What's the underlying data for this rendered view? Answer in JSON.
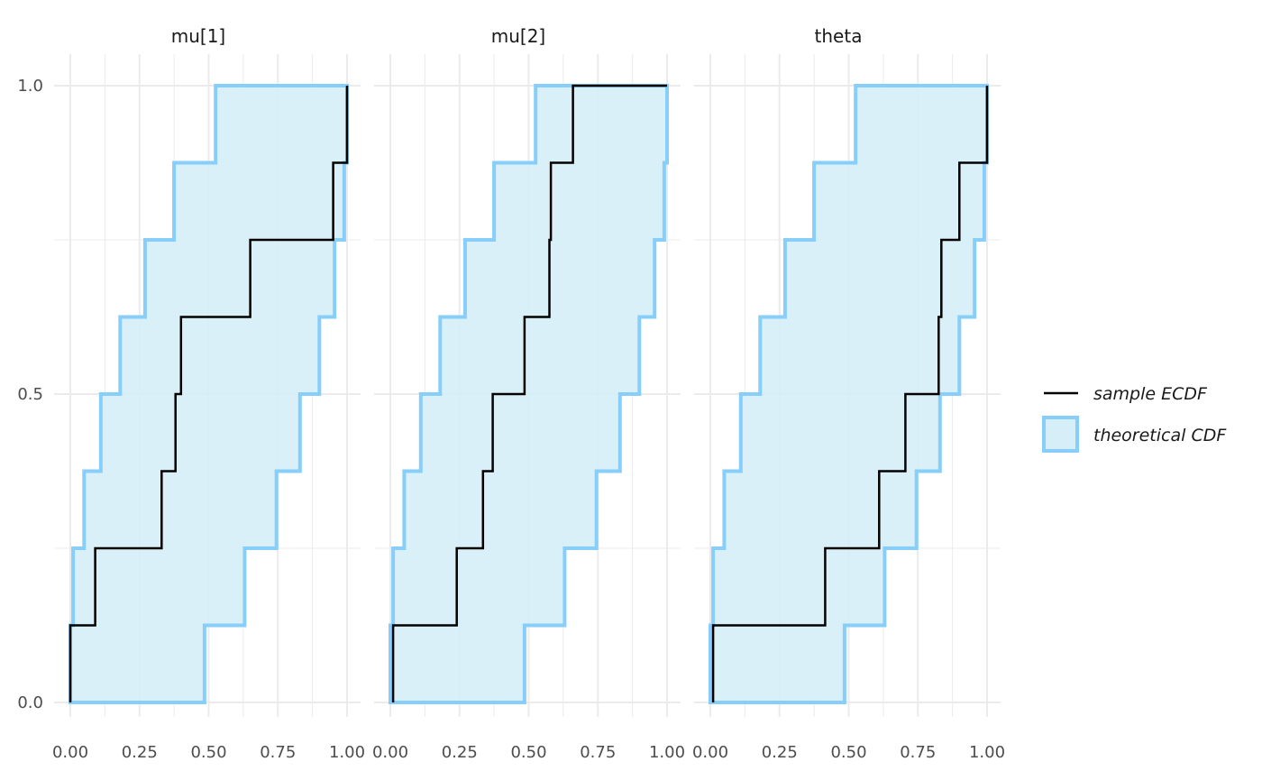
{
  "chart_data": {
    "type": "line",
    "panels": [
      {
        "name": "mu[1]",
        "ecdf_x": [
          0.0,
          0.09,
          0.33,
          0.38,
          0.4,
          0.65,
          0.95,
          1.0
        ],
        "band_upper_x": [
          0.0,
          0.01,
          0.05,
          0.11,
          0.18,
          0.27,
          0.375,
          0.525
        ],
        "band_lower_x": [
          0.485,
          0.63,
          0.745,
          0.83,
          0.9,
          0.955,
          0.99,
          1.0
        ]
      },
      {
        "name": "mu[2]",
        "ecdf_x": [
          0.01,
          0.24,
          0.335,
          0.37,
          0.485,
          0.575,
          0.58,
          0.66,
          1.0
        ],
        "band_upper_x": [
          0.0,
          0.01,
          0.05,
          0.11,
          0.18,
          0.27,
          0.375,
          0.525
        ],
        "band_lower_x": [
          0.485,
          0.63,
          0.745,
          0.83,
          0.9,
          0.955,
          0.99,
          1.0
        ]
      },
      {
        "name": "theta",
        "ecdf_x": [
          0.01,
          0.415,
          0.61,
          0.705,
          0.825,
          0.835,
          0.9,
          1.0
        ],
        "band_upper_x": [
          0.0,
          0.01,
          0.05,
          0.11,
          0.18,
          0.27,
          0.375,
          0.525
        ],
        "band_lower_x": [
          0.485,
          0.63,
          0.745,
          0.83,
          0.9,
          0.955,
          0.99,
          1.0
        ]
      }
    ],
    "ecdf_y_steps": [
      0,
      0.125,
      0.25,
      0.375,
      0.5,
      0.625,
      0.75,
      0.875,
      1.0
    ],
    "xlim": [
      0,
      1
    ],
    "ylim": [
      0,
      1
    ],
    "x_ticks": [
      0.0,
      0.25,
      0.5,
      0.75,
      1.0
    ],
    "x_tick_labels": [
      "0.00",
      "0.25",
      "0.50",
      "0.75",
      "1.00"
    ],
    "y_ticks": [
      0.0,
      0.5,
      1.0
    ],
    "y_tick_labels": [
      "0.0",
      "0.5",
      "1.0"
    ],
    "grid": true,
    "legend": {
      "position": "right",
      "entries": [
        "sample ECDF",
        "theoretical CDF"
      ]
    },
    "colors": {
      "ecdf_line": "#000000",
      "band_line": "#87cefa",
      "band_fill": "#d6eef8",
      "grid": "#ebebeb"
    }
  }
}
